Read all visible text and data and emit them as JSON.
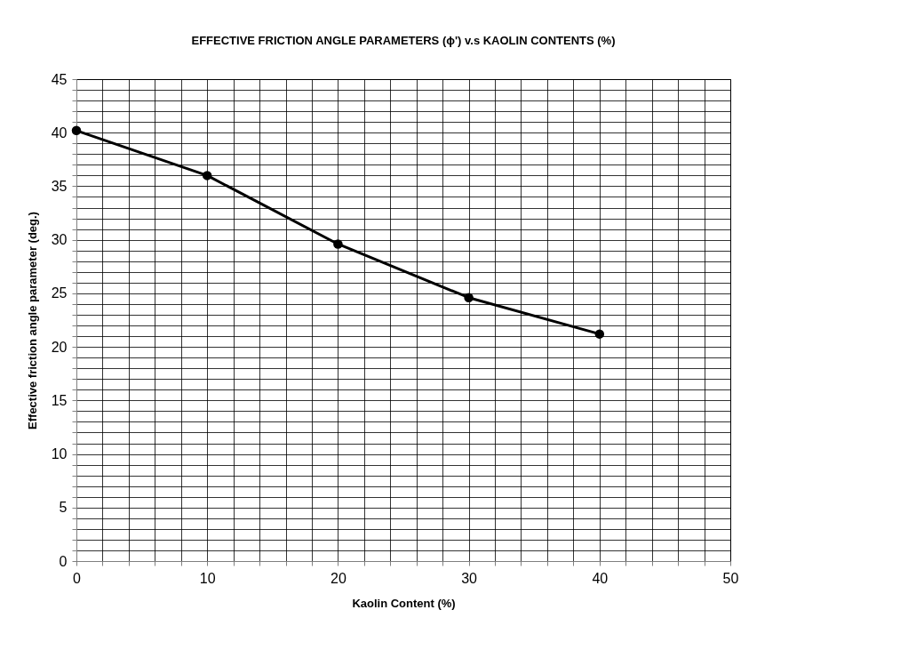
{
  "chart_data": {
    "type": "line",
    "title": "EFFECTIVE FRICTION ANGLE PARAMETERS (ϕ') v.s KAOLIN CONTENTS (%)",
    "xlabel": "Kaolin Content (%)",
    "ylabel": "Effective friction angle parameter     (deg.)",
    "x": [
      0,
      10,
      20,
      30,
      40
    ],
    "series": [
      {
        "color": "#000000",
        "values": [
          40.2,
          36.0,
          29.6,
          24.6,
          21.2
        ]
      }
    ],
    "xlim": [
      0,
      50
    ],
    "ylim": [
      0,
      45
    ],
    "xticks": [
      0,
      {
        "value": 2,
        "label": null
      },
      {
        "value": 4,
        "label": null
      },
      {
        "value": 6,
        "label": null
      },
      {
        "value": 8,
        "label": null
      },
      10,
      {
        "value": 12,
        "label": null
      },
      {
        "value": 14,
        "label": null
      },
      {
        "value": 16,
        "label": null
      },
      {
        "value": 18,
        "label": null
      },
      20,
      {
        "value": 22,
        "label": null
      },
      {
        "value": 24,
        "label": null
      },
      {
        "value": 26,
        "label": null
      },
      {
        "value": 28,
        "label": null
      },
      30,
      {
        "value": 32,
        "label": null
      },
      {
        "value": 34,
        "label": null
      },
      {
        "value": 36,
        "label": null
      },
      {
        "value": 38,
        "label": null
      },
      40,
      {
        "value": 42,
        "label": null
      },
      {
        "value": 44,
        "label": null
      },
      {
        "value": 46,
        "label": null
      },
      {
        "value": 48,
        "label": null
      },
      50
    ],
    "yticks": [
      0,
      {
        "value": 1,
        "label": null
      },
      {
        "value": 2,
        "label": null
      },
      {
        "value": 3,
        "label": null
      },
      {
        "value": 4,
        "label": null
      },
      5,
      {
        "value": 6,
        "label": null
      },
      {
        "value": 7,
        "label": null
      },
      {
        "value": 8,
        "label": null
      },
      {
        "value": 9,
        "label": null
      },
      10,
      {
        "value": 11,
        "label": null
      },
      {
        "value": 12,
        "label": null
      },
      {
        "value": 13,
        "label": null
      },
      {
        "value": 14,
        "label": null
      },
      15,
      {
        "value": 16,
        "label": null
      },
      {
        "value": 17,
        "label": null
      },
      {
        "value": 18,
        "label": null
      },
      {
        "value": 19,
        "label": null
      },
      20,
      {
        "value": 21,
        "label": null
      },
      {
        "value": 22,
        "label": null
      },
      {
        "value": 23,
        "label": null
      },
      {
        "value": 24,
        "label": null
      },
      25,
      {
        "value": 26,
        "label": null
      },
      {
        "value": 27,
        "label": null
      },
      {
        "value": 28,
        "label": null
      },
      {
        "value": 29,
        "label": null
      },
      30,
      {
        "value": 31,
        "label": null
      },
      {
        "value": 32,
        "label": null
      },
      {
        "value": 33,
        "label": null
      },
      {
        "value": 34,
        "label": null
      },
      35,
      {
        "value": 36,
        "label": null
      },
      {
        "value": 37,
        "label": null
      },
      {
        "value": 38,
        "label": null
      },
      {
        "value": 39,
        "label": null
      },
      40,
      {
        "value": 41,
        "label": null
      },
      {
        "value": 42,
        "label": null
      },
      {
        "value": 43,
        "label": null
      },
      {
        "value": 44,
        "label": null
      },
      45
    ],
    "grid": true,
    "marker": "circle",
    "line_style": "solid"
  }
}
